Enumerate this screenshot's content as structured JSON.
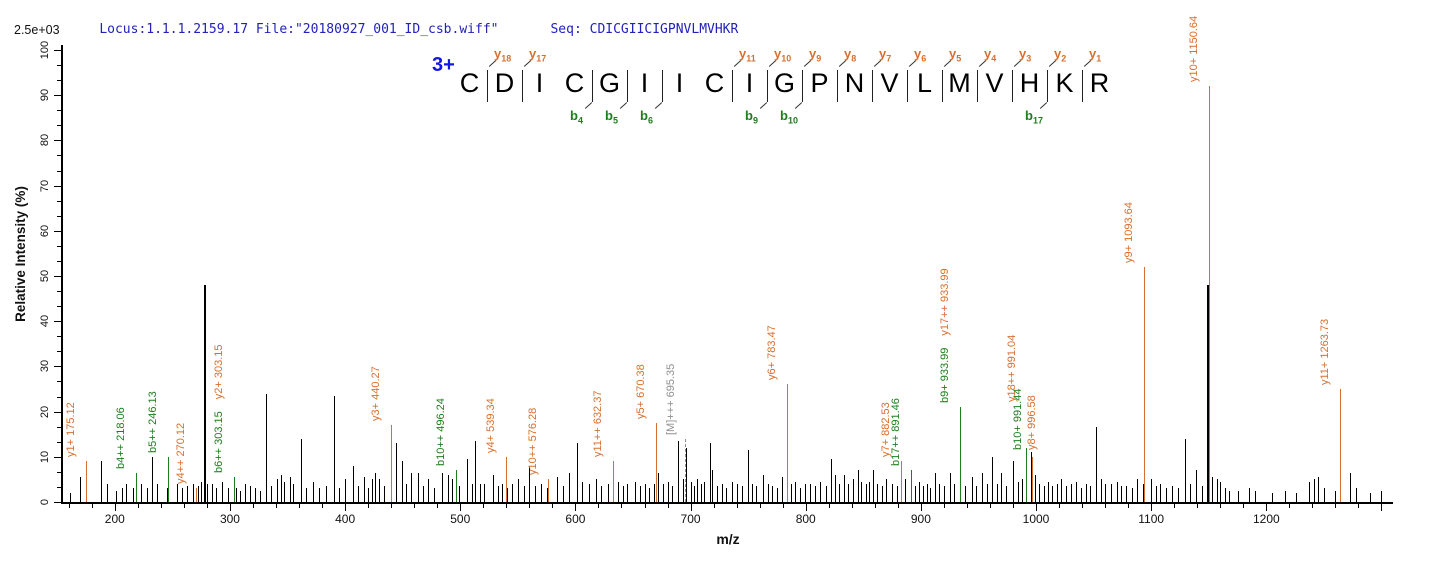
{
  "header": {
    "locus_file": "Locus:1.1.1.2159.17 File:\"20180927_001_ID_csb.wiff\"",
    "seq": "Seq: CDICGIICIGPNVLMVHKR",
    "intensity_full_scale": "2.5e+03"
  },
  "axes": {
    "xlabel": "m/z",
    "ylabel": "Relative  Intensity (%)",
    "x_tick_labels": [
      "200",
      "300",
      "400",
      "500",
      "600",
      "700",
      "800",
      "900",
      "1000",
      "1100",
      "1200"
    ],
    "y_tick_labels": [
      "0",
      "10",
      "20",
      "30",
      "40",
      "50",
      "60",
      "70",
      "80",
      "90",
      "100"
    ]
  },
  "peptide": {
    "charge_label": "3+",
    "residues": [
      "C",
      "D",
      "I",
      "C",
      "G",
      "I",
      "I",
      "C",
      "I",
      "G",
      "P",
      "N",
      "V",
      "L",
      "M",
      "V",
      "H",
      "K",
      "R"
    ],
    "boundaries": [
      {
        "after": 0,
        "top": "y18"
      },
      {
        "after": 1,
        "top": "y17"
      },
      {
        "after": 3,
        "bottom": "b4"
      },
      {
        "after": 4,
        "bottom": "b5"
      },
      {
        "after": 5,
        "bottom": "b6"
      },
      {
        "after": 7,
        "top": "y11"
      },
      {
        "after": 8,
        "top": "y10",
        "bottom": "b9"
      },
      {
        "after": 9,
        "top": "y9",
        "bottom": "b10"
      },
      {
        "after": 10,
        "top": "y8"
      },
      {
        "after": 11,
        "top": "y7"
      },
      {
        "after": 12,
        "top": "y6"
      },
      {
        "after": 13,
        "top": "y5"
      },
      {
        "after": 14,
        "top": "y4"
      },
      {
        "after": 15,
        "top": "y3"
      },
      {
        "after": 16,
        "top": "y2",
        "bottom": "b17"
      },
      {
        "after": 17,
        "top": "y1"
      }
    ]
  },
  "colors": {
    "y_ion": "#d86f2e",
    "b_ion": "#1e7e1e",
    "precursor": "#909090",
    "peak": "#000000",
    "header_blue": "#2222bb",
    "charge_blue": "#1414e6"
  },
  "chart_data": {
    "type": "bar",
    "subtype": "ms2-centroid-spectrum",
    "title": "",
    "xlabel": "m/z",
    "ylabel": "Relative  Intensity (%)",
    "xlim": [
      155,
      1310
    ],
    "ylim": [
      0,
      100
    ],
    "x_major_tick_step": 100,
    "x_minor_tick_step": 20,
    "y_major_tick_step": 10,
    "y_minor_per_major": 2,
    "intensity_full_scale": "2.5e+03",
    "precursor_peak": {
      "mz": 695.35,
      "height": 14,
      "label": "[M]+++ 695.35"
    },
    "labeled_peaks": [
      {
        "mz": 175.12,
        "height": 9,
        "labels": [
          {
            "text": "y1+ 175.12",
            "series": "y"
          }
        ]
      },
      {
        "mz": 218.06,
        "height": 6.5,
        "labels": [
          {
            "text": "b4++ 218.06",
            "series": "b"
          }
        ]
      },
      {
        "mz": 246.13,
        "height": 10,
        "labels": [
          {
            "text": "b5++ 246.13",
            "series": "b"
          }
        ]
      },
      {
        "mz": 270.12,
        "height": 3,
        "labels": [
          {
            "text": "y4++ 270.12",
            "series": "y"
          }
        ]
      },
      {
        "mz": 303.15,
        "height": 5.5,
        "labels": [
          {
            "text": "b6++ 303.15",
            "series": "b"
          },
          {
            "text": "y2+ 303.15",
            "series": "y"
          }
        ]
      },
      {
        "mz": 440.27,
        "height": 17,
        "labels": [
          {
            "text": "y3+ 440.27",
            "series": "y"
          }
        ]
      },
      {
        "mz": 496.24,
        "height": 7,
        "labels": [
          {
            "text": "b10++ 496.24",
            "series": "b"
          }
        ]
      },
      {
        "mz": 539.34,
        "height": 10,
        "labels": [
          {
            "text": "y4+ 539.34",
            "series": "y"
          }
        ]
      },
      {
        "mz": 576.28,
        "height": 5,
        "labels": [
          {
            "text": "y10++ 576.28",
            "series": "y"
          }
        ]
      },
      {
        "mz": 632.37,
        "height": 9,
        "labels": [
          {
            "text": "y11++ 632.37",
            "series": "y"
          }
        ]
      },
      {
        "mz": 670.38,
        "height": 17.5,
        "labels": [
          {
            "text": "y5+ 670.38",
            "series": "y"
          }
        ]
      },
      {
        "mz": 783.47,
        "height": 26,
        "labels": [
          {
            "text": "y6+ 783.47",
            "series": "y"
          }
        ]
      },
      {
        "mz": 882.53,
        "height": 9,
        "labels": [
          {
            "text": "y7+ 882.53",
            "series": "y"
          }
        ]
      },
      {
        "mz": 891.46,
        "height": 7,
        "labels": [
          {
            "text": "b17++ 891.46",
            "series": "b"
          }
        ]
      },
      {
        "mz": 933.99,
        "height": 21,
        "labels": [
          {
            "text": "b9+ 933.99",
            "series": "b"
          },
          {
            "text": "y17++ 933.99",
            "series": "y"
          }
        ]
      },
      {
        "mz": 991.04,
        "height": 12,
        "label_bottom": 100,
        "label_dx": -8,
        "labels": [
          {
            "text": "y18++ 991.04",
            "series": "y"
          }
        ]
      },
      {
        "mz": 991.44,
        "height": 12,
        "label_bottom": 52,
        "label_dx": -2,
        "labels": [
          {
            "text": "b10+ 991.44",
            "series": "b"
          }
        ]
      },
      {
        "mz": 996.58,
        "height": 10,
        "label_bottom": 52,
        "label_dx": 6,
        "labels": [
          {
            "text": "y8+ 996.58",
            "series": "y"
          }
        ]
      },
      {
        "mz": 1093.64,
        "height": 52,
        "labels": [
          {
            "text": "y9+ 1093.64",
            "series": "y"
          }
        ]
      },
      {
        "mz": 1150.64,
        "height": 92,
        "labels": [
          {
            "text": "y10+ 1150.64",
            "series": "y"
          }
        ]
      },
      {
        "mz": 1263.73,
        "height": 25,
        "labels": [
          {
            "text": "y11+ 1263.73",
            "series": "y"
          }
        ]
      }
    ],
    "unlabeled_peaks": [
      [
        161,
        2
      ],
      [
        170,
        5.5
      ],
      [
        188,
        9
      ],
      [
        193,
        4
      ],
      [
        201,
        2.5
      ],
      [
        206,
        3
      ],
      [
        210,
        4
      ],
      [
        216,
        3
      ],
      [
        223,
        4
      ],
      [
        228,
        3
      ],
      [
        232,
        10
      ],
      [
        237,
        4
      ],
      [
        245,
        3
      ],
      [
        254,
        4
      ],
      [
        258,
        3
      ],
      [
        263,
        3.5
      ],
      [
        268,
        4
      ],
      [
        272,
        3.5
      ],
      [
        275,
        4.5
      ],
      [
        277.5,
        48
      ],
      [
        280,
        4
      ],
      [
        284,
        4
      ],
      [
        288,
        3
      ],
      [
        293,
        4.5
      ],
      [
        298,
        3
      ],
      [
        305,
        3
      ],
      [
        309,
        2.5
      ],
      [
        313,
        4
      ],
      [
        317,
        3.5
      ],
      [
        322,
        3
      ],
      [
        326,
        2.5
      ],
      [
        331,
        24
      ],
      [
        336,
        3.5
      ],
      [
        341,
        5
      ],
      [
        344,
        6
      ],
      [
        347,
        4.5
      ],
      [
        352,
        5.5
      ],
      [
        355,
        4
      ],
      [
        362,
        14
      ],
      [
        366,
        3
      ],
      [
        372,
        4.5
      ],
      [
        377,
        3
      ],
      [
        383,
        3.5
      ],
      [
        390,
        23.5
      ],
      [
        395,
        3
      ],
      [
        400,
        5
      ],
      [
        407,
        8
      ],
      [
        411,
        3.5
      ],
      [
        416,
        5.5
      ],
      [
        420,
        3
      ],
      [
        423,
        5
      ],
      [
        426,
        6.5
      ],
      [
        429,
        5
      ],
      [
        434,
        3.5
      ],
      [
        444,
        13
      ],
      [
        449,
        9
      ],
      [
        453,
        4
      ],
      [
        457,
        6.5
      ],
      [
        463,
        6.5
      ],
      [
        468,
        3.5
      ],
      [
        472,
        5
      ],
      [
        477,
        3
      ],
      [
        484,
        6.5
      ],
      [
        489,
        6
      ],
      [
        493,
        5
      ],
      [
        499,
        3.5
      ],
      [
        506,
        9.5
      ],
      [
        510,
        4
      ],
      [
        513,
        13.5
      ],
      [
        517,
        4
      ],
      [
        521,
        4
      ],
      [
        528,
        6
      ],
      [
        533,
        3.5
      ],
      [
        536,
        4
      ],
      [
        541,
        3
      ],
      [
        545,
        4
      ],
      [
        550,
        5
      ],
      [
        555,
        3.5
      ],
      [
        560,
        8
      ],
      [
        565,
        3.5
      ],
      [
        570,
        4
      ],
      [
        575,
        3
      ],
      [
        584,
        5.5
      ],
      [
        589,
        3.5
      ],
      [
        594,
        6.5
      ],
      [
        601,
        13
      ],
      [
        606,
        4.5
      ],
      [
        612,
        4
      ],
      [
        618,
        5
      ],
      [
        622,
        3.5
      ],
      [
        628,
        4
      ],
      [
        637,
        4.5
      ],
      [
        641,
        3.5
      ],
      [
        645,
        4
      ],
      [
        652,
        4.5
      ],
      [
        656,
        3.5
      ],
      [
        660,
        4
      ],
      [
        664,
        3
      ],
      [
        668,
        4
      ],
      [
        672,
        6.5
      ],
      [
        676,
        4
      ],
      [
        680,
        4.5
      ],
      [
        684,
        3.5
      ],
      [
        689.5,
        13.5
      ],
      [
        693,
        5
      ],
      [
        695.8,
        12
      ],
      [
        700,
        4.5
      ],
      [
        703,
        3.5
      ],
      [
        706,
        5
      ],
      [
        709,
        4
      ],
      [
        712,
        4.5
      ],
      [
        716.5,
        13
      ],
      [
        719,
        7
      ],
      [
        723,
        3.5
      ],
      [
        727,
        4
      ],
      [
        731,
        3
      ],
      [
        736,
        4.5
      ],
      [
        740,
        4
      ],
      [
        745,
        3.5
      ],
      [
        749.5,
        11.5
      ],
      [
        753,
        4
      ],
      [
        757,
        3.5
      ],
      [
        763,
        6
      ],
      [
        767,
        4
      ],
      [
        771,
        3.5
      ],
      [
        775,
        3
      ],
      [
        779,
        5.5
      ],
      [
        787,
        4
      ],
      [
        791,
        4.5
      ],
      [
        795,
        3
      ],
      [
        799,
        4
      ],
      [
        804,
        4
      ],
      [
        808,
        3.5
      ],
      [
        812,
        4.5
      ],
      [
        818,
        3.5
      ],
      [
        822,
        9.5
      ],
      [
        825,
        6
      ],
      [
        829,
        4
      ],
      [
        833,
        6
      ],
      [
        837,
        4
      ],
      [
        841,
        5
      ],
      [
        845,
        7
      ],
      [
        848,
        4.5
      ],
      [
        852,
        4
      ],
      [
        855,
        4.5
      ],
      [
        858,
        7
      ],
      [
        862,
        4
      ],
      [
        866,
        3.5
      ],
      [
        870,
        5
      ],
      [
        875,
        4
      ],
      [
        879,
        3.5
      ],
      [
        886,
        5
      ],
      [
        895,
        3.5
      ],
      [
        898,
        4.5
      ],
      [
        902,
        3.5
      ],
      [
        905,
        4
      ],
      [
        908,
        3
      ],
      [
        912,
        6.5
      ],
      [
        916,
        4
      ],
      [
        920,
        3.5
      ],
      [
        925,
        6.5
      ],
      [
        929,
        4
      ],
      [
        938,
        3.5
      ],
      [
        944,
        5.5
      ],
      [
        948,
        3.5
      ],
      [
        953,
        6.5
      ],
      [
        957,
        4
      ],
      [
        962,
        10
      ],
      [
        966,
        4
      ],
      [
        970,
        6.5
      ],
      [
        974,
        3.5
      ],
      [
        980,
        9
      ],
      [
        984,
        4.5
      ],
      [
        988,
        5
      ],
      [
        996,
        11
      ],
      [
        999,
        6
      ],
      [
        1003,
        4
      ],
      [
        1007,
        3.5
      ],
      [
        1010,
        4.5
      ],
      [
        1014,
        3.5
      ],
      [
        1018,
        4
      ],
      [
        1022,
        5
      ],
      [
        1026,
        3.5
      ],
      [
        1030,
        4
      ],
      [
        1035,
        4.5
      ],
      [
        1039,
        3
      ],
      [
        1043,
        4
      ],
      [
        1047,
        3.5
      ],
      [
        1052,
        16.5
      ],
      [
        1056,
        5
      ],
      [
        1060,
        4
      ],
      [
        1065,
        4
      ],
      [
        1070,
        4.5
      ],
      [
        1074,
        3.5
      ],
      [
        1078,
        3.5
      ],
      [
        1083,
        3
      ],
      [
        1088,
        5
      ],
      [
        1093,
        4
      ],
      [
        1100,
        5
      ],
      [
        1104,
        3.5
      ],
      [
        1108,
        4
      ],
      [
        1113,
        3
      ],
      [
        1118,
        3.5
      ],
      [
        1123,
        3
      ],
      [
        1129,
        14
      ],
      [
        1134,
        4
      ],
      [
        1139,
        7
      ],
      [
        1144,
        3.5
      ],
      [
        1148.6,
        48
      ],
      [
        1153,
        5.5
      ],
      [
        1157,
        5
      ],
      [
        1160,
        4.5
      ],
      [
        1164,
        3
      ],
      [
        1168,
        2.5
      ],
      [
        1175,
        2.5
      ],
      [
        1185,
        3
      ],
      [
        1190,
        2.5
      ],
      [
        1205,
        2
      ],
      [
        1216,
        2.5
      ],
      [
        1226,
        2
      ],
      [
        1237,
        4.5
      ],
      [
        1241,
        5
      ],
      [
        1245,
        5.5
      ],
      [
        1250,
        3
      ],
      [
        1260,
        2.5
      ],
      [
        1273,
        6.5
      ],
      [
        1278,
        3
      ],
      [
        1290,
        2
      ],
      [
        1300,
        2.5
      ]
    ]
  }
}
